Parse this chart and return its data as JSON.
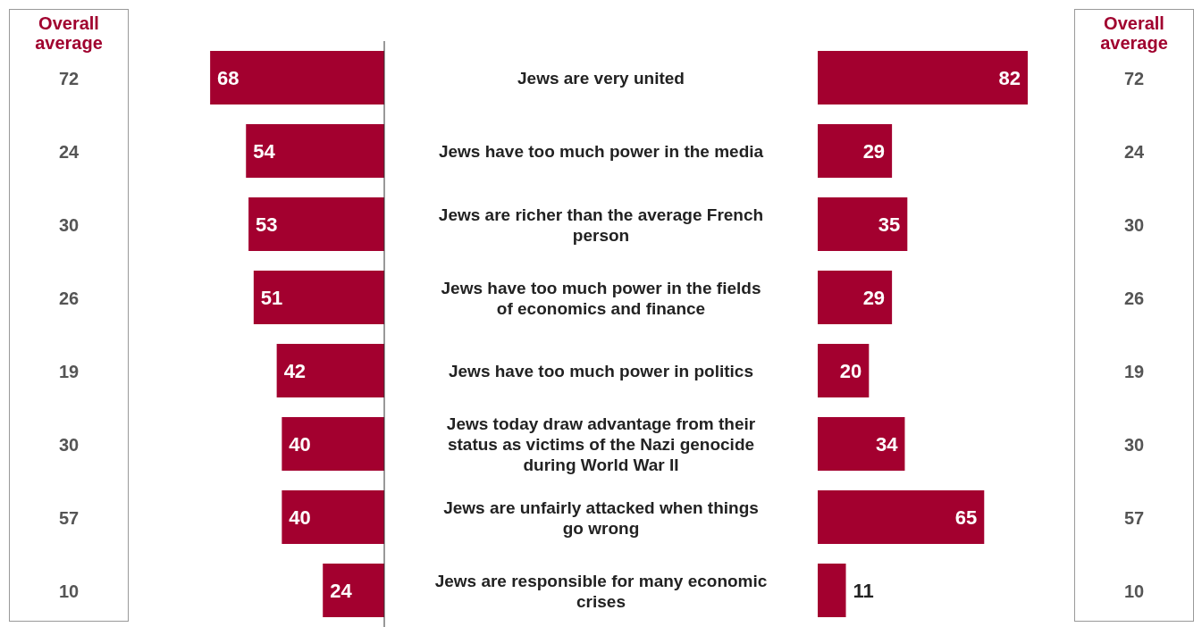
{
  "chart_data": [
    {
      "type": "other",
      "title": "Overall average",
      "values": [
        72,
        24,
        30,
        26,
        19,
        30,
        57,
        10
      ],
      "data_labels": true
    },
    {
      "type": "bar",
      "orientation": "horizontal",
      "categories": [
        "Jews are very united",
        "Jews have too much power in the media",
        "Jews are richer than the average French person",
        "Jews have too much power in the fields of economics and finance",
        "Jews have too much power in politics",
        "Jews today draw advantage from their status as victims of the Nazi genocide during World War II",
        "Jews are unfairly attacked when things go wrong",
        "Jews are responsible for many economic crises"
      ],
      "values": [
        68,
        54,
        53,
        51,
        42,
        40,
        40,
        24
      ],
      "color": "#a3002f",
      "data_labels": true,
      "tick_labels": "y"
    },
    {
      "type": "bar",
      "orientation": "horizontal",
      "values": [
        82,
        29,
        35,
        29,
        20,
        34,
        65,
        11
      ],
      "color": "#a3002f",
      "data_labels": true
    },
    {
      "type": "other",
      "title": "Overall average",
      "values": [
        72,
        24,
        30,
        26,
        19,
        30,
        57,
        10
      ],
      "data_labels": true
    }
  ]
}
